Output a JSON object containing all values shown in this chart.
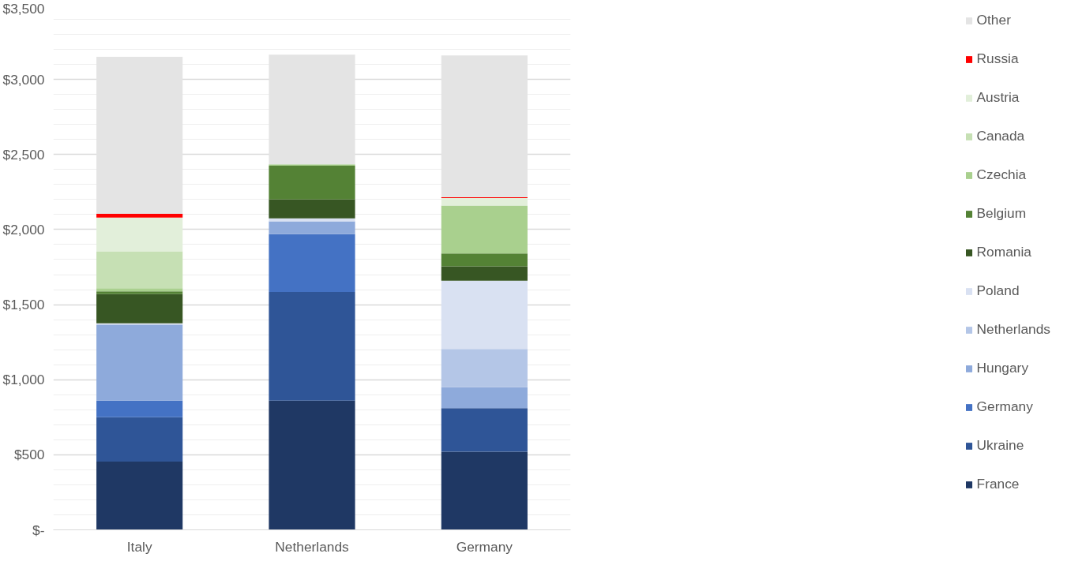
{
  "chart_data": {
    "type": "bar",
    "stacked": true,
    "categories": [
      "Italy",
      "Netherlands",
      "Germany"
    ],
    "series": [
      {
        "name": "France",
        "color": "#1f3864",
        "values": [
          455,
          860,
          520
        ]
      },
      {
        "name": "Ukraine",
        "color": "#2f5597",
        "values": [
          295,
          725,
          290
        ]
      },
      {
        "name": "Germany",
        "color": "#4472c4",
        "values": [
          110,
          385,
          0
        ]
      },
      {
        "name": "Hungary",
        "color": "#8eaadb",
        "values": [
          505,
          85,
          140
        ]
      },
      {
        "name": "Netherlands",
        "color": "#b4c6e7",
        "values": [
          5,
          0,
          255
        ]
      },
      {
        "name": "Poland",
        "color": "#d9e1f2",
        "values": [
          5,
          20,
          455
        ]
      },
      {
        "name": "Romania",
        "color": "#375623",
        "values": [
          195,
          125,
          95
        ]
      },
      {
        "name": "Belgium",
        "color": "#548235",
        "values": [
          18,
          225,
          85
        ]
      },
      {
        "name": "Czechia",
        "color": "#a9d08e",
        "values": [
          22,
          10,
          320
        ]
      },
      {
        "name": "Canada",
        "color": "#c6e0b4",
        "values": [
          245,
          0,
          0
        ]
      },
      {
        "name": "Austria",
        "color": "#e2efda",
        "values": [
          225,
          0,
          50
        ]
      },
      {
        "name": "Russia",
        "color": "#ff0000",
        "values": [
          25,
          0,
          5
        ]
      },
      {
        "name": "Other",
        "color": "#e4e4e4",
        "values": [
          1045,
          730,
          945
        ]
      }
    ],
    "ylim": [
      0,
      3500
    ],
    "yticks": [
      {
        "value": 0,
        "label": "$-"
      },
      {
        "value": 500,
        "label": "$500"
      },
      {
        "value": 1000,
        "label": "$1,000"
      },
      {
        "value": 1500,
        "label": "$1,500"
      },
      {
        "value": 2000,
        "label": "$2,000"
      },
      {
        "value": 2500,
        "label": "$2,500"
      },
      {
        "value": 3000,
        "label": "$3,000"
      },
      {
        "value": 3500,
        "label": "$3,500"
      }
    ],
    "grid": "y",
    "legend": "right"
  }
}
